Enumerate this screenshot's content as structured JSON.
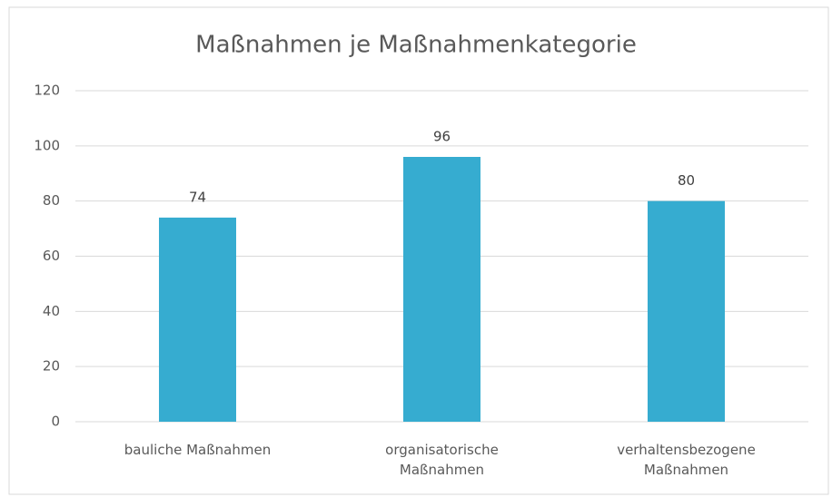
{
  "chart_data": {
    "type": "bar",
    "title": "Maßnahmen je Maßnahmenkategorie",
    "categories": [
      "bauliche Maßnahmen",
      "organisatorische Maßnahmen",
      "verhaltensbezogene Maßnahmen"
    ],
    "values": [
      74,
      96,
      80
    ],
    "color": "#36acd0",
    "ylim": [
      0,
      120
    ],
    "yticks": [
      0,
      20,
      40,
      60,
      80,
      100,
      120
    ],
    "grid": true
  }
}
